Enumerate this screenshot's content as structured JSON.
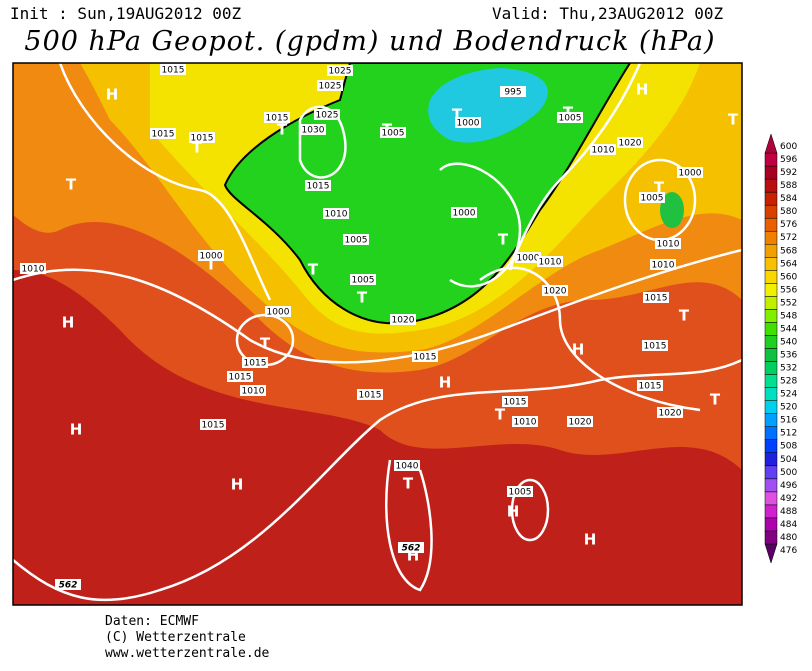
{
  "header": {
    "init": "Init : Sun,19AUG2012 00Z",
    "valid": "Valid: Thu,23AUG2012 00Z",
    "title": "500 hPa Geopot. (gpdm) und Bodendruck (hPa)"
  },
  "map": {
    "labels": [
      "H",
      "H",
      "H",
      "H",
      "H",
      "H",
      "H",
      "H",
      "H",
      "H",
      "T",
      "T",
      "T",
      "T",
      "T",
      "T",
      "T",
      "T",
      "T",
      "T",
      "T",
      "T",
      "T",
      "T",
      "T",
      "T",
      "T",
      "1015",
      "1025",
      "1025",
      "1015",
      "1015",
      "1015",
      "1030",
      "1025",
      "1005",
      "1000",
      "995",
      "1005",
      "1010",
      "1020",
      "1015",
      "1010",
      "1005",
      "1000",
      "1000",
      "1005",
      "1010",
      "1005",
      "1000",
      "1010",
      "1020",
      "1010",
      "1000",
      "1010",
      "1015",
      "1015",
      "1010",
      "1015",
      "1015",
      "1020",
      "1015",
      "1015",
      "1015",
      "1015",
      "1015",
      "1010",
      "1005",
      "1020",
      "1040",
      "1020",
      "1000",
      "562",
      "562"
    ]
  },
  "colorbar": {
    "levels": [
      476,
      480,
      484,
      488,
      492,
      496,
      500,
      504,
      508,
      512,
      516,
      520,
      524,
      528,
      532,
      536,
      540,
      544,
      548,
      552,
      556,
      560,
      564,
      568,
      572,
      576,
      580,
      584,
      588,
      592,
      596,
      600
    ],
    "colors": [
      "#5a0064",
      "#800080",
      "#b000b0",
      "#d020d0",
      "#e050e0",
      "#a050f0",
      "#6040f0",
      "#2020e0",
      "#0040ff",
      "#0070ff",
      "#00a0ff",
      "#00d0f0",
      "#00e0c0",
      "#00e090",
      "#00d060",
      "#10c040",
      "#20d020",
      "#40e000",
      "#80f000",
      "#c0f000",
      "#f0f000",
      "#f8d800",
      "#f8c000",
      "#f0a000",
      "#f08000",
      "#e86000",
      "#d84000",
      "#c82000",
      "#b81010",
      "#a80020",
      "#c00040",
      "#b0003c"
    ]
  },
  "footer": {
    "lines": [
      "Daten: ECMWF",
      "(C) Wetterzentrale",
      "www.wetterzentrale.de"
    ]
  }
}
